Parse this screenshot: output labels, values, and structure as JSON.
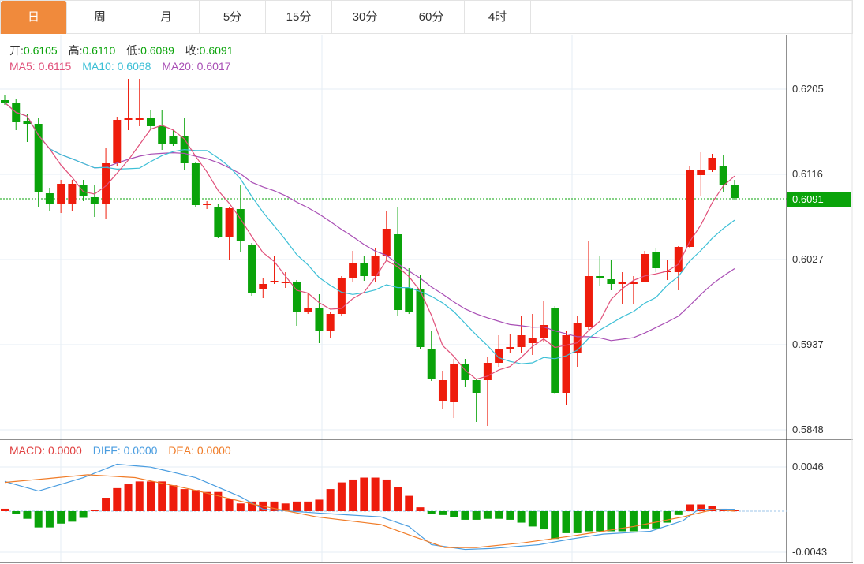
{
  "tabs": [
    "日",
    "周",
    "月",
    "5分",
    "15分",
    "30分",
    "60分",
    "4时"
  ],
  "active_tab": 0,
  "ohlc_info": {
    "open_label": "开:",
    "open": "0.6105",
    "high_label": "高:",
    "high": "0.6110",
    "low_label": "低:",
    "low": "0.6089",
    "close_label": "收:",
    "close": "0.6091"
  },
  "ma_info": {
    "ma5": "MA5: 0.6115",
    "ma10": "MA10: 0.6068",
    "ma20": "MA20: 0.6017"
  },
  "macd_info": {
    "macd": "MACD: 0.0000",
    "diff": "DIFF: 0.0000",
    "dea": "DEA: 0.0000"
  },
  "price_axis": [
    "0.6205",
    "0.6116",
    "0.6027",
    "0.5937",
    "0.5848"
  ],
  "macd_axis": [
    "0.0046",
    "-0.0043"
  ],
  "current_price": "0.6091",
  "colors": {
    "up": "#ee1c0c",
    "down": "#0aa30a",
    "ma5": "#e0507a",
    "ma10": "#3cbfd6",
    "ma20": "#a94fb5",
    "diff": "#4a9de0",
    "dea": "#f07c28",
    "accent": "#f08a3c"
  },
  "chart_data": {
    "type": "candlestick",
    "price_range": [
      0.5848,
      0.6205
    ],
    "candles_px_note": "[open, close, high, low]",
    "candles_y": [
      [
        127,
        130,
        120,
        133
      ],
      [
        130,
        155,
        125,
        165
      ],
      [
        153,
        157,
        145,
        180
      ],
      [
        157,
        243,
        150,
        262
      ],
      [
        245,
        258,
        238,
        268
      ],
      [
        258,
        233,
        228,
        270
      ],
      [
        258,
        233,
        228,
        268
      ],
      [
        235,
        248,
        228,
        255
      ],
      [
        250,
        258,
        235,
        275
      ],
      [
        258,
        207,
        188,
        278
      ],
      [
        207,
        152,
        148,
        210
      ],
      [
        152,
        150,
        100,
        165
      ],
      [
        152,
        150,
        100,
        160
      ],
      [
        150,
        160,
        140,
        165
      ],
      [
        160,
        182,
        140,
        190
      ],
      [
        173,
        182,
        165,
        185
      ],
      [
        173,
        207,
        150,
        215
      ],
      [
        207,
        260,
        205,
        262
      ],
      [
        260,
        258,
        255,
        265
      ],
      [
        262,
        300,
        258,
        302
      ],
      [
        300,
        264,
        262,
        330
      ],
      [
        265,
        305,
        235,
        320
      ],
      [
        310,
        372,
        308,
        375
      ],
      [
        367,
        360,
        352,
        378
      ],
      [
        358,
        356,
        325,
        360
      ],
      [
        358,
        357,
        345,
        365
      ],
      [
        357,
        395,
        355,
        413
      ],
      [
        395,
        390,
        372,
        398
      ],
      [
        390,
        420,
        373,
        435
      ],
      [
        420,
        398,
        395,
        428
      ],
      [
        398,
        352,
        350,
        400
      ],
      [
        352,
        333,
        318,
        358
      ],
      [
        333,
        350,
        325,
        356
      ],
      [
        350,
        325,
        315,
        358
      ],
      [
        325,
        290,
        268,
        330
      ],
      [
        297,
        393,
        262,
        400
      ],
      [
        365,
        395,
        340,
        398
      ],
      [
        367,
        440,
        348,
        443
      ],
      [
        443,
        480,
        420,
        483
      ],
      [
        508,
        482,
        470,
        518
      ],
      [
        510,
        462,
        455,
        530
      ],
      [
        462,
        482,
        455,
        490
      ],
      [
        482,
        498,
        480,
        535
      ],
      [
        482,
        460,
        452,
        540
      ],
      [
        460,
        443,
        425,
        465
      ],
      [
        443,
        440,
        423,
        447
      ],
      [
        440,
        425,
        400,
        448
      ],
      [
        435,
        428,
        398,
        450
      ],
      [
        428,
        412,
        382,
        433
      ],
      [
        390,
        498,
        388,
        500
      ],
      [
        498,
        425,
        420,
        513
      ],
      [
        447,
        410,
        400,
        465
      ],
      [
        415,
        350,
        305,
        418
      ],
      [
        350,
        353,
        325,
        362
      ],
      [
        354,
        360,
        330,
        368
      ],
      [
        360,
        357,
        345,
        385
      ],
      [
        360,
        357,
        350,
        385
      ],
      [
        357,
        322,
        318,
        358
      ],
      [
        320,
        340,
        315,
        345
      ],
      [
        345,
        343,
        330,
        355
      ],
      [
        345,
        313,
        312,
        368
      ],
      [
        313,
        215,
        210,
        315
      ],
      [
        222,
        215,
        193,
        248
      ],
      [
        215,
        200,
        195,
        218
      ],
      [
        211,
        235,
        196,
        243
      ],
      [
        235,
        251,
        228,
        253
      ]
    ],
    "macd_hist": [
      0.00025,
      -0.00025,
      -0.0008,
      -0.0017,
      -0.0017,
      -0.0013,
      -0.0011,
      -0.0007,
      0.0001,
      0.0014,
      0.0024,
      0.0028,
      0.0031,
      0.0031,
      0.0031,
      0.0027,
      0.0023,
      0.0022,
      0.002,
      0.002,
      0.0013,
      0.0008,
      0.001,
      0.001,
      0.001,
      0.0008,
      0.001,
      0.001,
      0.0012,
      0.0023,
      0.003,
      0.0033,
      0.0035,
      0.0035,
      0.0033,
      0.0025,
      0.0016,
      0.0004,
      -0.00025,
      -0.0004,
      -0.0006,
      -0.0009,
      -0.0009,
      -0.0008,
      -0.0008,
      -0.0009,
      -0.0012,
      -0.0016,
      -0.0019,
      -0.0029,
      -0.0023,
      -0.0023,
      -0.0021,
      -0.0021,
      -0.0021,
      -0.0021,
      -0.0021,
      -0.0018,
      -0.0018,
      -0.0012,
      -0.0004,
      0.0007,
      0.0007,
      0.0005,
      0.00025,
      0.0001
    ],
    "diff": [
      [
        0,
        0.0031
      ],
      [
        3,
        0.0021
      ],
      [
        7,
        0.0035
      ],
      [
        10,
        0.0049
      ],
      [
        13,
        0.0046
      ],
      [
        17,
        0.0035
      ],
      [
        21,
        0.0015
      ],
      [
        23,
        0.0002
      ],
      [
        28,
        -0.0002
      ],
      [
        33.5,
        -0.0006
      ],
      [
        36,
        -0.0016
      ],
      [
        38,
        -0.0035
      ],
      [
        41,
        -0.004
      ],
      [
        43.4,
        -0.0039
      ],
      [
        47.6,
        -0.0035
      ],
      [
        50.5,
        -0.0029
      ],
      [
        53.3,
        -0.0024
      ],
      [
        57.5,
        -0.0021
      ],
      [
        60.4,
        -0.001
      ],
      [
        61.8,
        0.0002
      ],
      [
        65,
        0.0002
      ]
    ],
    "dea": [
      [
        0,
        0.003
      ],
      [
        3.8,
        0.0034
      ],
      [
        7.4,
        0.0038
      ],
      [
        11.6,
        0.0035
      ],
      [
        16.5,
        0.0023
      ],
      [
        22.2,
        0.0007
      ],
      [
        27.8,
        -0.0006
      ],
      [
        33.5,
        -0.0014
      ],
      [
        36.3,
        -0.0026
      ],
      [
        39.2,
        -0.0038
      ],
      [
        42,
        -0.0038
      ],
      [
        46.2,
        -0.0033
      ],
      [
        50.5,
        -0.0026
      ],
      [
        56,
        -0.0016
      ],
      [
        60.4,
        -0.0006
      ],
      [
        63.2,
        0.0002
      ],
      [
        65,
        0
      ]
    ],
    "macd_range": [
      -0.0043,
      0.0046
    ]
  }
}
